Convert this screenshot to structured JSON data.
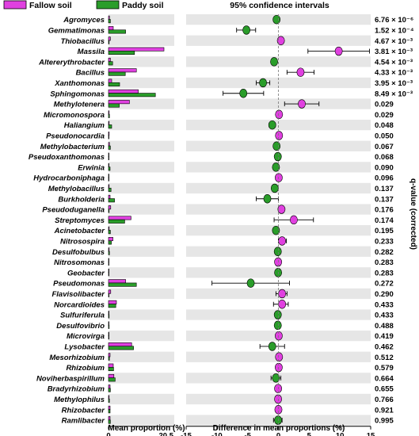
{
  "legend": {
    "fallow": "Fallow soil",
    "paddy": "Paddy soil"
  },
  "ci_title": "95% confidence intervals",
  "q_axis_label": "q-value (corrected)",
  "colors": {
    "fallow": "#e040e0",
    "paddy": "#2a9d2a",
    "stripe": "#e6e6e6",
    "errorbar": "#000000"
  },
  "chart_data": [
    {
      "type": "bar",
      "orientation": "horizontal",
      "xlabel": "Mean proportion (%)",
      "xlim": [
        0,
        20.5
      ],
      "xticks": [
        "0",
        "20.5"
      ],
      "categories": [
        "Agromyces",
        "Gemmatimonas",
        "Thiobacillus",
        "Massila",
        "Altererythrobacter",
        "Bacillus",
        "Xanthomonas",
        "Sphingomonas",
        "Methylotenera",
        "Micromonospora",
        "Haliangium",
        "Pseudonocardia",
        "Methylobacterium",
        "Pseudoxanthomonas",
        "Erwinia",
        "Hydrocarboniphaga",
        "Methylobacillus",
        "Burkholderia",
        "Pseudoduganella",
        "Streptomyces",
        "Acinetobacter",
        "Nitrosospira",
        "Desulfobulbus",
        "Nitrosomonas",
        "Geobacter",
        "Pseudomonas",
        "Flavisolibacter",
        "Norcardioides",
        "Sulfuriferula",
        "Desulfovibrio",
        "Microvirga",
        "Lysobacter",
        "Mesorhizobium",
        "Rhizobium",
        "Noviherbaspirillum",
        "Bradyrhizobium",
        "Methylophilus",
        "Rhizobacter",
        "Ramlibacter"
      ],
      "series": [
        {
          "name": "Fallow soil",
          "values": [
            0.3,
            1.5,
            0.6,
            17.5,
            0.6,
            8.8,
            1.0,
            9.4,
            6.6,
            0.2,
            0.2,
            0.2,
            0.3,
            0.1,
            0.1,
            0.15,
            0.2,
            0.5,
            0.7,
            7.1,
            0.2,
            1.4,
            0.2,
            0.1,
            0.05,
            5.4,
            0.7,
            2.5,
            0.1,
            0.1,
            0.1,
            7.3,
            0.5,
            1.5,
            1.7,
            0.5,
            0.2,
            0.5,
            0.5
          ]
        },
        {
          "name": "Paddy soil",
          "values": [
            0.6,
            5.4,
            0.2,
            8.2,
            1.3,
            5.3,
            3.5,
            14.8,
            3.4,
            0.3,
            1.0,
            0.1,
            0.6,
            0.15,
            0.5,
            0.1,
            0.8,
            1.9,
            0.2,
            5.1,
            0.6,
            0.9,
            0.3,
            0.15,
            0.1,
            8.8,
            0.1,
            2.3,
            0.2,
            0.2,
            0.1,
            7.9,
            0.3,
            1.6,
            2.1,
            0.6,
            0.3,
            0.5,
            0.6
          ]
        }
      ]
    },
    {
      "type": "scatter",
      "subtype": "difference-with-95pct-ci",
      "xlabel": "Difference in mean proportions (%)",
      "xlim": [
        -15,
        15
      ],
      "xticks": [
        "-15",
        "-10",
        "-5",
        "0",
        "5",
        "10",
        "15"
      ],
      "categories": [
        "Agromyces",
        "Gemmatimonas",
        "Thiobacillus",
        "Massila",
        "Altererythrobacter",
        "Bacillus",
        "Xanthomonas",
        "Sphingomonas",
        "Methylotenera",
        "Micromonospora",
        "Haliangium",
        "Pseudonocardia",
        "Methylobacterium",
        "Pseudoxanthomonas",
        "Erwinia",
        "Hydrocarboniphaga",
        "Methylobacillus",
        "Burkholderia",
        "Pseudoduganella",
        "Streptomyces",
        "Acinetobacter",
        "Nitrosospira",
        "Desulfobulbus",
        "Nitrosomonas",
        "Geobacter",
        "Pseudomonas",
        "Flavisolibacter",
        "Norcardioides",
        "Sulfuriferula",
        "Desulfovibrio",
        "Microvirga",
        "Lysobacter",
        "Mesorhizobium",
        "Rhizobium",
        "Noviherbaspirillum",
        "Bradyrhizobium",
        "Methylophilus",
        "Rhizobacter",
        "Ramlibacter"
      ],
      "points": [
        {
          "diff": -0.3,
          "lo": -0.6,
          "hi": -0.1,
          "group": "Paddy soil"
        },
        {
          "diff": -5.2,
          "lo": -6.8,
          "hi": -3.7,
          "group": "Paddy soil"
        },
        {
          "diff": 0.4,
          "lo": 0.2,
          "hi": 0.6,
          "group": "Fallow soil"
        },
        {
          "diff": 9.8,
          "lo": 4.8,
          "hi": 14.8,
          "group": "Fallow soil"
        },
        {
          "diff": -0.7,
          "lo": -1.1,
          "hi": -0.3,
          "group": "Paddy soil"
        },
        {
          "diff": 3.6,
          "lo": 1.4,
          "hi": 5.8,
          "group": "Fallow soil"
        },
        {
          "diff": -2.5,
          "lo": -3.6,
          "hi": -1.4,
          "group": "Paddy soil"
        },
        {
          "diff": -5.7,
          "lo": -9.0,
          "hi": -2.4,
          "group": "Paddy soil"
        },
        {
          "diff": 3.8,
          "lo": 1.0,
          "hi": 6.6,
          "group": "Fallow soil"
        },
        {
          "diff": 0.1,
          "lo": 0.0,
          "hi": 0.2,
          "group": "Fallow soil"
        },
        {
          "diff": -1.0,
          "lo": -1.5,
          "hi": -0.5,
          "group": "Paddy soil"
        },
        {
          "diff": 0.1,
          "lo": 0.0,
          "hi": 0.2,
          "group": "Fallow soil"
        },
        {
          "diff": -0.3,
          "lo": -0.5,
          "hi": -0.1,
          "group": "Paddy soil"
        },
        {
          "diff": -0.1,
          "lo": -0.2,
          "hi": 0.0,
          "group": "Paddy soil"
        },
        {
          "diff": -0.4,
          "lo": -0.7,
          "hi": -0.1,
          "group": "Paddy soil"
        },
        {
          "diff": 0.05,
          "lo": 0.0,
          "hi": 0.1,
          "group": "Fallow soil"
        },
        {
          "diff": -0.6,
          "lo": -1.0,
          "hi": -0.2,
          "group": "Paddy soil"
        },
        {
          "diff": -1.8,
          "lo": -3.6,
          "hi": 0.0,
          "group": "Paddy soil"
        },
        {
          "diff": 0.5,
          "lo": 0.1,
          "hi": 0.9,
          "group": "Fallow soil"
        },
        {
          "diff": 2.5,
          "lo": -0.7,
          "hi": 5.7,
          "group": "Fallow soil"
        },
        {
          "diff": -0.4,
          "lo": -0.8,
          "hi": 0.0,
          "group": "Paddy soil"
        },
        {
          "diff": 0.6,
          "lo": 0.0,
          "hi": 1.3,
          "group": "Fallow soil"
        },
        {
          "diff": -0.1,
          "lo": -0.3,
          "hi": 0.1,
          "group": "Paddy soil"
        },
        {
          "diff": -0.05,
          "lo": -0.1,
          "hi": 0.0,
          "group": "Fallow soil"
        },
        {
          "diff": -0.05,
          "lo": -0.1,
          "hi": 0.0,
          "group": "Paddy soil"
        },
        {
          "diff": -4.5,
          "lo": -10.8,
          "hi": 1.8,
          "group": "Paddy soil"
        },
        {
          "diff": 0.6,
          "lo": -0.4,
          "hi": 1.4,
          "group": "Fallow soil"
        },
        {
          "diff": 0.6,
          "lo": -0.8,
          "hi": 1.6,
          "group": "Fallow soil"
        },
        {
          "diff": -0.1,
          "lo": -0.3,
          "hi": 0.1,
          "group": "Paddy soil"
        },
        {
          "diff": -0.1,
          "lo": -0.3,
          "hi": 0.1,
          "group": "Paddy soil"
        },
        {
          "diff": 0.05,
          "lo": -0.1,
          "hi": 0.2,
          "group": "Fallow soil"
        },
        {
          "diff": -1.0,
          "lo": -3.0,
          "hi": 1.0,
          "group": "Paddy soil"
        },
        {
          "diff": 0.1,
          "lo": -0.1,
          "hi": 0.3,
          "group": "Fallow soil"
        },
        {
          "diff": 0.05,
          "lo": -0.2,
          "hi": 0.3,
          "group": "Fallow soil"
        },
        {
          "diff": -0.4,
          "lo": -1.2,
          "hi": 0.4,
          "group": "Paddy soil"
        },
        {
          "diff": -0.05,
          "lo": -0.3,
          "hi": 0.2,
          "group": "Fallow soil"
        },
        {
          "diff": -0.05,
          "lo": -0.2,
          "hi": 0.1,
          "group": "Fallow soil"
        },
        {
          "diff": 0.0,
          "lo": -0.2,
          "hi": 0.2,
          "group": "Fallow soil"
        },
        {
          "diff": -0.05,
          "lo": -0.8,
          "hi": 0.6,
          "group": "Paddy soil"
        }
      ],
      "q_values": [
        "6.76 × 10⁻⁶",
        "1.52 × 10⁻⁴",
        "4.67 × 10⁻³",
        "3.81 × 10⁻³",
        "4.54 × 10⁻³",
        "4.33 × 10⁻³",
        "3.95 × 10⁻³",
        "8.49 × 10⁻³",
        "0.029",
        "0.029",
        "0.048",
        "0.050",
        "0.067",
        "0.068",
        "0.090",
        "0.096",
        "0.137",
        "0.137",
        "0.176",
        "0.174",
        "0.195",
        "0.233",
        "0.282",
        "0.283",
        "0.283",
        "0.272",
        "0.290",
        "0.433",
        "0.433",
        "0.488",
        "0.419",
        "0.462",
        "0.512",
        "0.579",
        "0.664",
        "0.655",
        "0.766",
        "0.921",
        "0.995"
      ]
    }
  ]
}
